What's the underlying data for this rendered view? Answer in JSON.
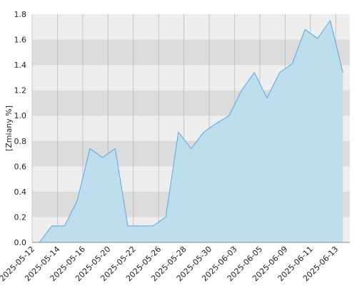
{
  "chart_data": {
    "type": "area",
    "y_label": "[Zmiany %]",
    "categories": [
      "2025-05-12",
      null,
      "2025-05-14",
      null,
      "2025-05-16",
      null,
      "2025-05-20",
      null,
      "2025-05-22",
      null,
      "2025-05-26",
      null,
      "2025-05-28",
      null,
      "2025-05-30",
      null,
      "2025-06-03",
      null,
      "2025-06-05",
      null,
      "2025-06-09",
      null,
      "2025-06-11",
      null,
      "2025-06-13"
    ],
    "values": [
      0,
      0.13,
      0.13,
      0.33,
      0.74,
      0.67,
      0.74,
      0.13,
      0.13,
      0.13,
      0.2,
      0.87,
      0.74,
      0.87,
      0.94,
      1.0,
      1.2,
      1.34,
      1.14,
      1.34,
      1.41,
      1.68,
      1.61,
      1.75,
      1.34
    ],
    "color": "#5aa5e6",
    "fill": "#b8dcec",
    "ylim": [
      0,
      1.8
    ],
    "yticks": [
      {
        "value": 0,
        "label": "0.0"
      },
      0.2,
      0.4,
      0.6,
      0.8,
      {
        "value": 1,
        "label": "1.0"
      },
      1.2,
      1.4,
      1.6,
      1.8
    ],
    "grid": true
  }
}
